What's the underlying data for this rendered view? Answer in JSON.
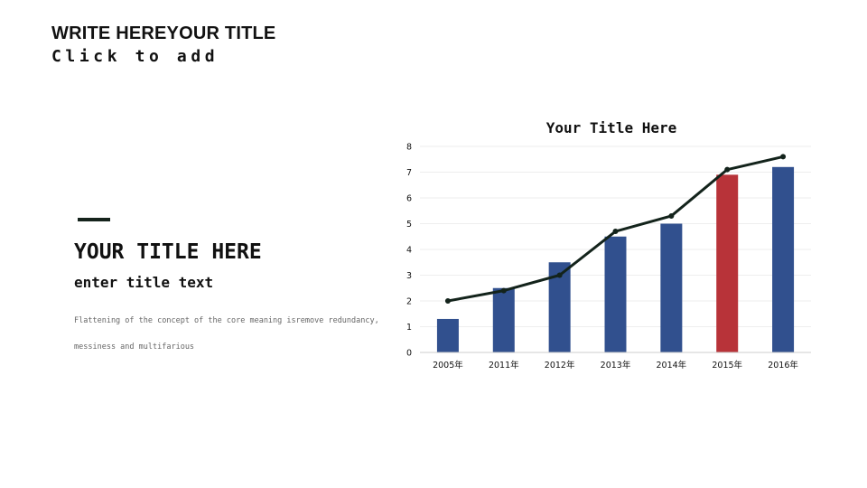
{
  "header": {
    "title": "WRITE HEREYOUR TITLE",
    "subtitle": "Click to add"
  },
  "left_panel": {
    "title": "YOUR TITLE HERE",
    "subtitle": "enter title text",
    "body": "Flattening of the concept of the core meaning isremove redundancy, messiness and multifarious"
  },
  "colors": {
    "bar": "#31508e",
    "bar_highlight": "#b83339",
    "line": "#13231b",
    "grid": "#eeeeee"
  },
  "chart_data": {
    "type": "bar",
    "title": "Your Title Here",
    "categories": [
      "2005年",
      "2011年",
      "2012年",
      "2013年",
      "2014年",
      "2015年",
      "2016年"
    ],
    "series": [
      {
        "type": "bar",
        "values": [
          1.3,
          2.5,
          3.5,
          4.5,
          5.0,
          6.9,
          7.2
        ],
        "highlight_index": 5
      },
      {
        "type": "line",
        "values": [
          2.0,
          2.4,
          3.0,
          4.7,
          5.3,
          7.1,
          7.6
        ]
      }
    ],
    "ylim": [
      0,
      8
    ],
    "yticks": [
      0,
      1,
      2,
      3,
      4,
      5,
      6,
      7,
      8
    ],
    "grid": true,
    "legend": "none"
  }
}
